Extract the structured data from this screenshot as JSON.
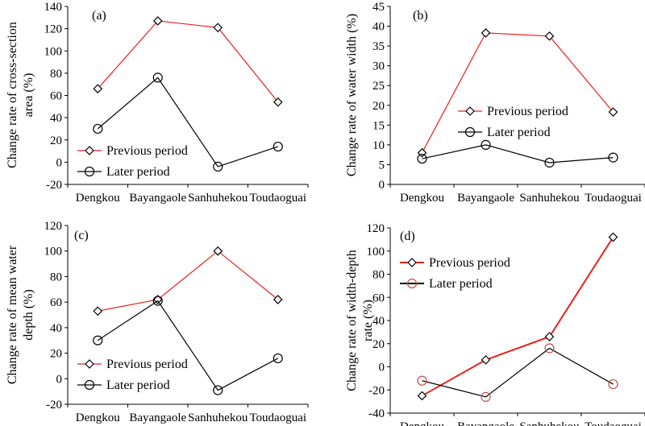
{
  "chart_data": [
    {
      "type": "line",
      "panel_label": "(a)",
      "ylabel_lines": [
        "Change rate of cross-section",
        "area (%)"
      ],
      "categories": [
        "Dengkou",
        "Bayangaole",
        "Sanhuhekou",
        "Toudaoguai"
      ],
      "ylim": [
        -20,
        140
      ],
      "yticks": [
        -20,
        0,
        20,
        40,
        60,
        80,
        100,
        120,
        140
      ],
      "legend_position": "bottom-right",
      "series": [
        {
          "name": "Previous period",
          "marker": "diamond",
          "line_color": "#e8201c",
          "marker_color": "#000000",
          "values": [
            66,
            127,
            121,
            54
          ]
        },
        {
          "name": "Later period",
          "marker": "circle",
          "line_color": "#000000",
          "marker_color": "#000000",
          "values": [
            30,
            76,
            -4,
            14
          ]
        }
      ]
    },
    {
      "type": "line",
      "panel_label": "(b)",
      "ylabel_lines": [
        "Change rate of water width (%)"
      ],
      "categories": [
        "Dengkou",
        "Bayangaole",
        "Sanhuhekou",
        "Toudaoguai"
      ],
      "ylim": [
        0,
        45
      ],
      "yticks": [
        0,
        5,
        10,
        15,
        20,
        25,
        30,
        35,
        40,
        45
      ],
      "legend_position": "center-left",
      "series": [
        {
          "name": "Previous period",
          "marker": "diamond",
          "line_color": "#e8201c",
          "marker_color": "#000000",
          "values": [
            8,
            38.3,
            37.5,
            18.3
          ]
        },
        {
          "name": "Later period",
          "marker": "circle",
          "line_color": "#000000",
          "marker_color": "#000000",
          "values": [
            6.5,
            10,
            5.5,
            6.8
          ]
        }
      ]
    },
    {
      "type": "line",
      "panel_label": "(c)",
      "ylabel_lines": [
        "Change rate of mean water",
        "depth (%)"
      ],
      "categories": [
        "Dengkou",
        "Bayangaole",
        "Sanhuhekou",
        "Toudaoguai"
      ],
      "ylim": [
        -20,
        120
      ],
      "yticks": [
        -20,
        0,
        20,
        40,
        60,
        80,
        100,
        120
      ],
      "legend_position": "bottom-left",
      "series": [
        {
          "name": "Previous period",
          "marker": "diamond",
          "line_color": "#e8201c",
          "marker_color": "#000000",
          "values": [
            53,
            62,
            100,
            62
          ]
        },
        {
          "name": "Later period",
          "marker": "circle",
          "line_color": "#000000",
          "marker_color": "#000000",
          "values": [
            30,
            61,
            -9,
            16
          ]
        }
      ]
    },
    {
      "type": "line",
      "panel_label": "(d)",
      "ylabel_lines": [
        "Change rate of width-depth",
        "rate (%)"
      ],
      "categories": [
        "Dengkou",
        "Bayangaole",
        "Sanhuhekou",
        "Toudaoguai"
      ],
      "ylim": [
        -40,
        120
      ],
      "yticks": [
        -40,
        -20,
        0,
        20,
        40,
        60,
        80,
        100,
        120
      ],
      "legend_position": "top-left",
      "series": [
        {
          "name": "Previous period",
          "marker": "diamond",
          "line_color": "#e8201c",
          "marker_color": "#000000",
          "values": [
            -25,
            6,
            26,
            112
          ]
        },
        {
          "name": "Later period",
          "marker": "circle",
          "line_color": "#000000",
          "marker_color": "#c0504d",
          "values": [
            -12,
            -26,
            16,
            -15
          ]
        }
      ]
    }
  ]
}
